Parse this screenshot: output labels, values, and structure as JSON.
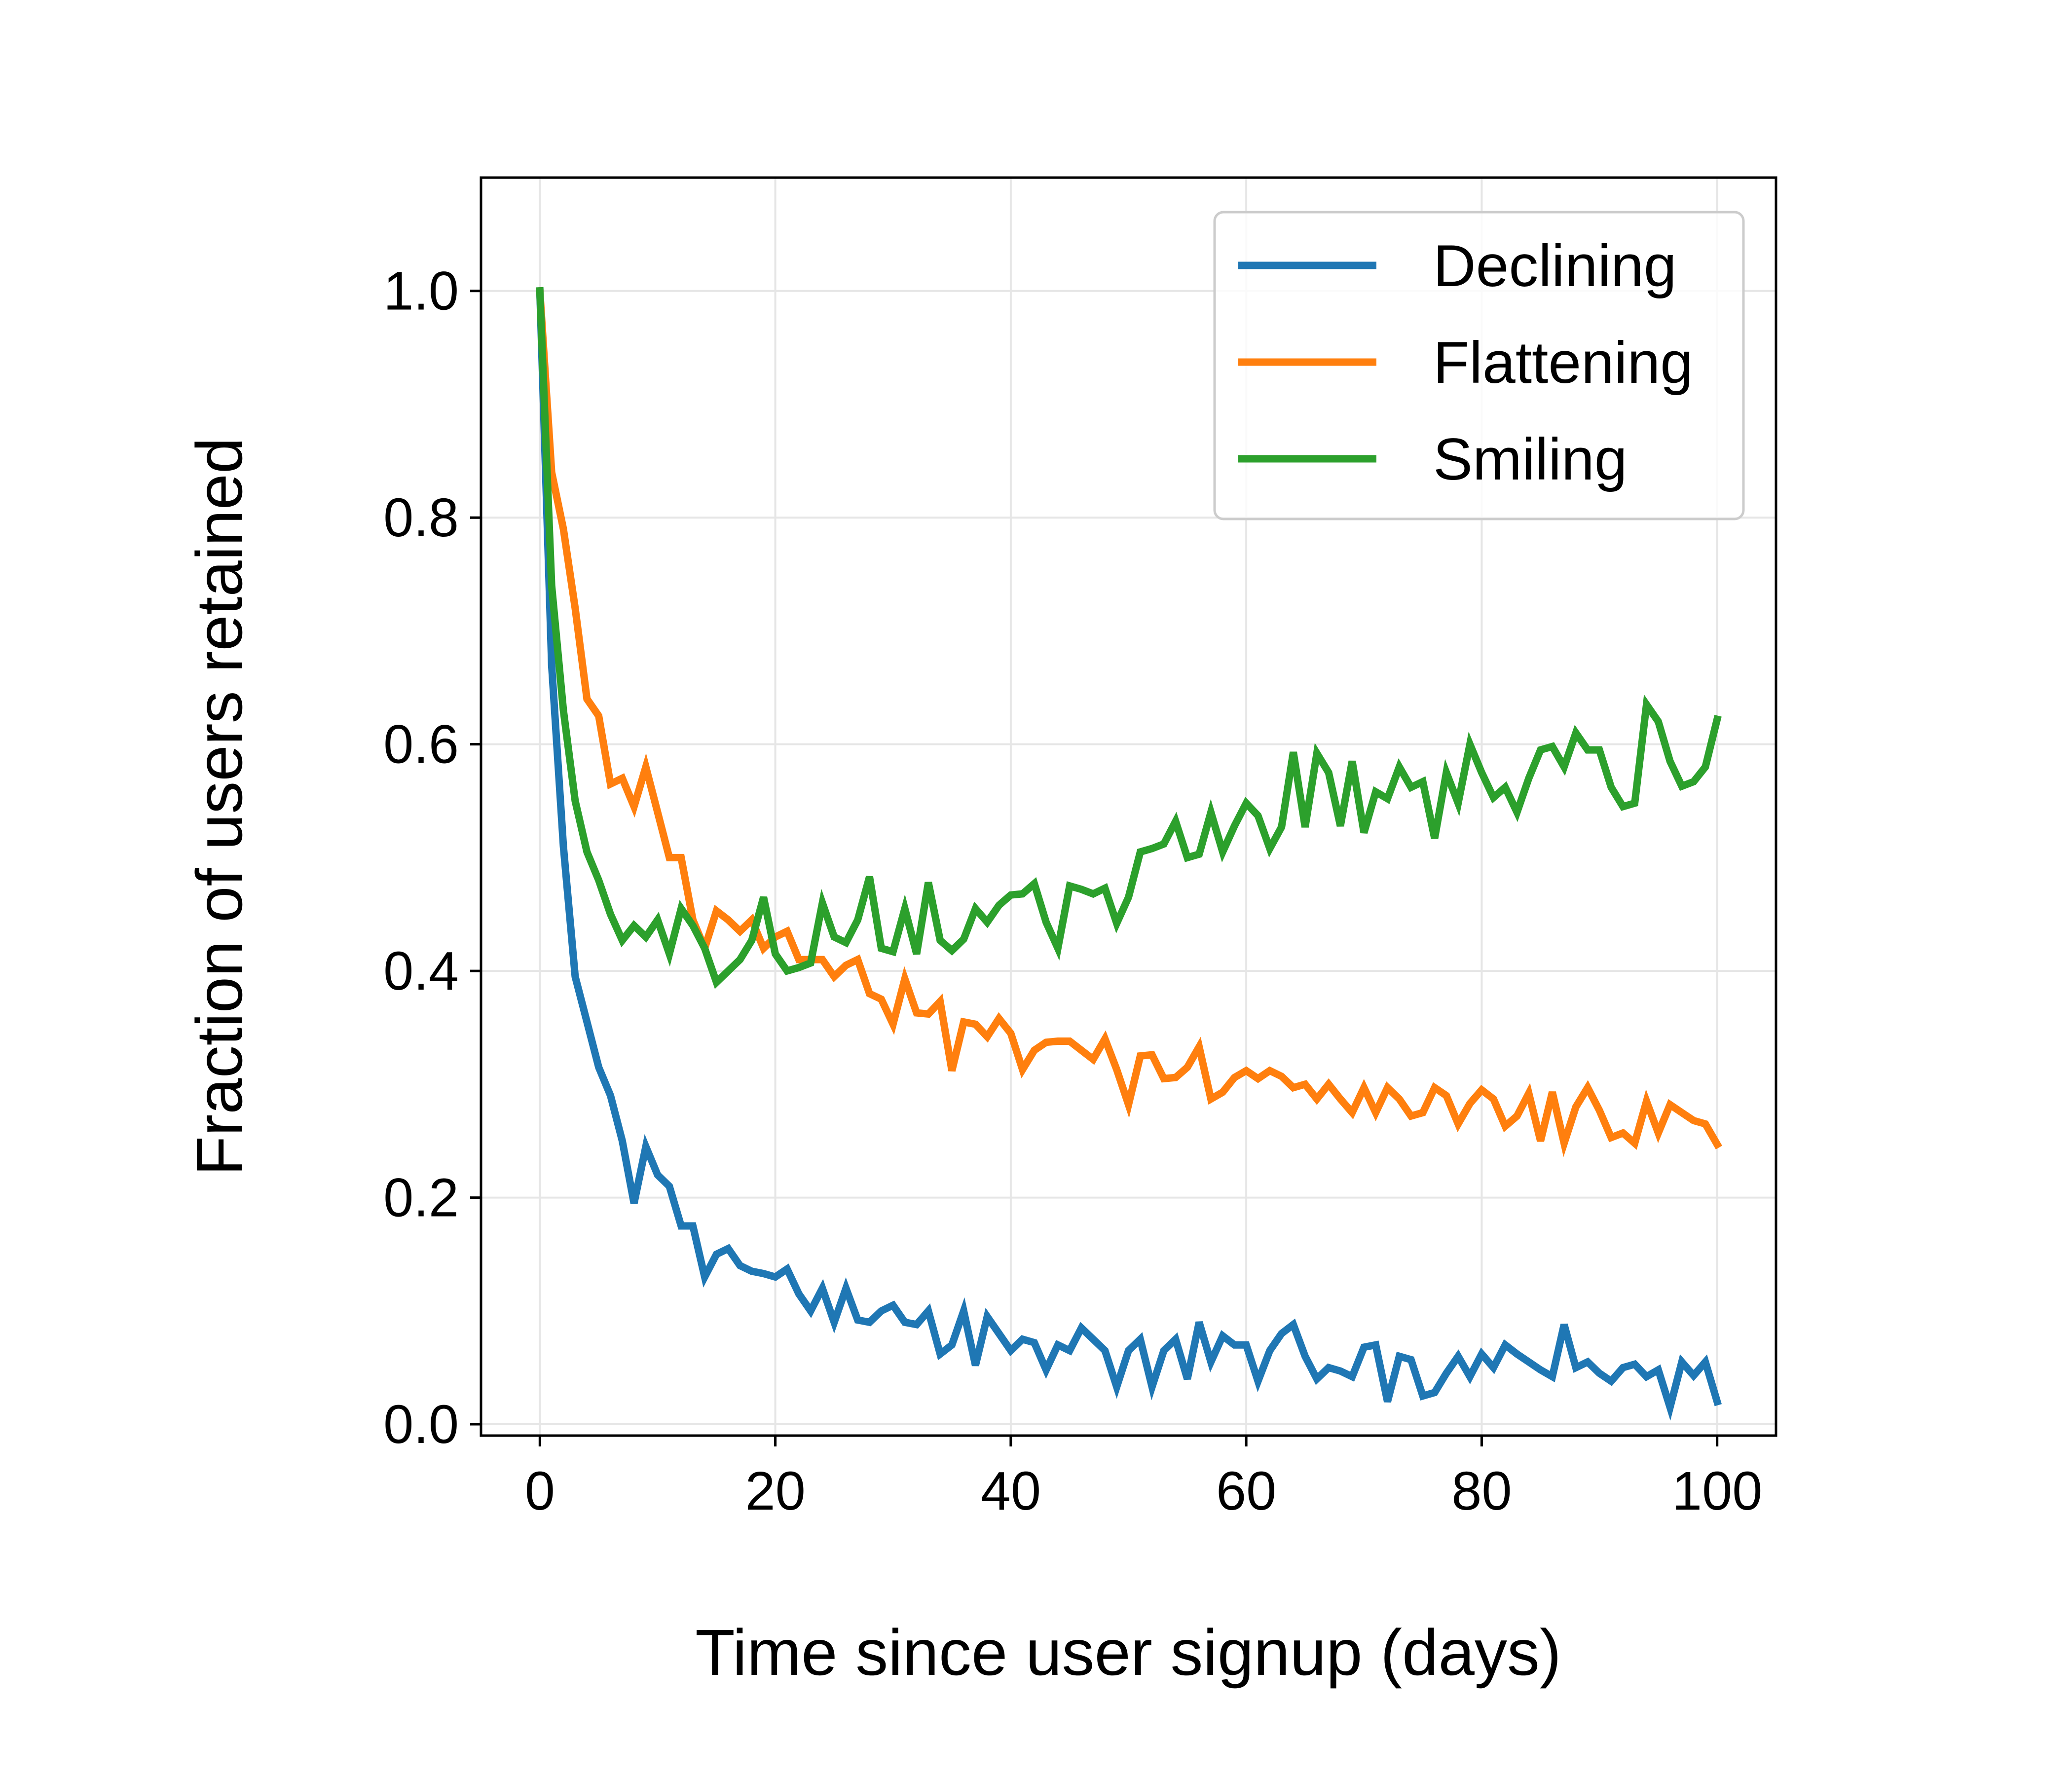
{
  "chart_data": {
    "type": "line",
    "xlabel": "Time since user signup (days)",
    "ylabel": "Fraction of users retained",
    "xlim": [
      -5,
      105
    ],
    "ylim": [
      -0.01,
      1.1
    ],
    "x_ticks": [
      0,
      20,
      40,
      60,
      80,
      100
    ],
    "x_tick_labels": [
      "0",
      "20",
      "40",
      "60",
      "80",
      "100"
    ],
    "y_ticks": [
      0.0,
      0.2,
      0.4,
      0.6,
      0.8,
      1.0
    ],
    "y_tick_labels": [
      "0.0",
      "0.2",
      "0.4",
      "0.6",
      "0.8",
      "1.0"
    ],
    "grid": true,
    "legend_position": "top-right",
    "x": [
      0,
      1,
      2,
      3,
      4,
      5,
      6,
      7,
      8,
      9,
      10,
      11,
      12,
      13,
      14,
      15,
      16,
      17,
      18,
      19,
      20,
      21,
      22,
      23,
      24,
      25,
      26,
      27,
      28,
      29,
      30,
      31,
      32,
      33,
      34,
      35,
      36,
      37,
      38,
      39,
      40,
      41,
      42,
      43,
      44,
      45,
      46,
      47,
      48,
      49,
      50,
      51,
      52,
      53,
      54,
      55,
      56,
      57,
      58,
      59,
      60,
      61,
      62,
      63,
      64,
      65,
      66,
      67,
      68,
      69,
      70,
      71,
      72,
      73,
      74,
      75,
      76,
      77,
      78,
      79,
      80,
      81,
      82,
      83,
      84,
      85,
      86,
      87,
      88,
      89,
      90,
      91,
      92,
      93,
      94,
      95,
      96,
      97,
      98,
      99,
      100
    ],
    "series": [
      {
        "name": "Declining",
        "color": "#1f77b4",
        "values": [
          1.0,
          0.67,
          0.51,
          0.395,
          0.355,
          0.315,
          0.29,
          0.25,
          0.195,
          0.245,
          0.22,
          0.21,
          0.175,
          0.175,
          0.13,
          0.15,
          0.155,
          0.14,
          0.135,
          0.133,
          0.13,
          0.137,
          0.115,
          0.1,
          0.12,
          0.09,
          0.12,
          0.092,
          0.09,
          0.1,
          0.105,
          0.09,
          0.088,
          0.1,
          0.062,
          0.07,
          0.1,
          0.052,
          0.095,
          0.08,
          0.065,
          0.075,
          0.072,
          0.048,
          0.07,
          0.065,
          0.085,
          0.075,
          0.065,
          0.033,
          0.065,
          0.075,
          0.033,
          0.065,
          0.075,
          0.04,
          0.09,
          0.055,
          0.078,
          0.07,
          0.07,
          0.038,
          0.065,
          0.08,
          0.088,
          0.06,
          0.04,
          0.05,
          0.047,
          0.042,
          0.068,
          0.07,
          0.02,
          0.06,
          0.057,
          0.025,
          0.028,
          0.045,
          0.06,
          0.042,
          0.062,
          0.05,
          0.07,
          0.062,
          0.055,
          0.048,
          0.042,
          0.088,
          0.05,
          0.055,
          0.045,
          0.038,
          0.05,
          0.053,
          0.042,
          0.048,
          0.015,
          0.055,
          0.043,
          0.055,
          0.02
        ]
      },
      {
        "name": "Flattening",
        "color": "#ff7f0e",
        "values": [
          1.0,
          0.84,
          0.79,
          0.72,
          0.64,
          0.625,
          0.565,
          0.57,
          0.545,
          0.58,
          0.54,
          0.5,
          0.5,
          0.445,
          0.42,
          0.453,
          0.445,
          0.435,
          0.445,
          0.42,
          0.43,
          0.435,
          0.41,
          0.41,
          0.41,
          0.395,
          0.405,
          0.41,
          0.38,
          0.375,
          0.353,
          0.393,
          0.363,
          0.362,
          0.373,
          0.312,
          0.355,
          0.353,
          0.342,
          0.358,
          0.345,
          0.313,
          0.33,
          0.337,
          0.338,
          0.338,
          0.33,
          0.322,
          0.34,
          0.313,
          0.282,
          0.325,
          0.326,
          0.305,
          0.306,
          0.315,
          0.333,
          0.287,
          0.293,
          0.306,
          0.312,
          0.305,
          0.312,
          0.307,
          0.297,
          0.3,
          0.287,
          0.3,
          0.287,
          0.275,
          0.297,
          0.275,
          0.297,
          0.287,
          0.272,
          0.275,
          0.297,
          0.29,
          0.265,
          0.283,
          0.295,
          0.287,
          0.263,
          0.272,
          0.292,
          0.25,
          0.293,
          0.248,
          0.28,
          0.297,
          0.277,
          0.253,
          0.257,
          0.248,
          0.285,
          0.257,
          0.282,
          0.275,
          0.268,
          0.265,
          0.247
        ]
      },
      {
        "name": "Smiling",
        "color": "#2ca02c",
        "values": [
          1.0,
          0.74,
          0.63,
          0.55,
          0.505,
          0.48,
          0.45,
          0.427,
          0.44,
          0.43,
          0.445,
          0.415,
          0.455,
          0.44,
          0.42,
          0.39,
          0.4,
          0.41,
          0.427,
          0.465,
          0.415,
          0.4,
          0.403,
          0.407,
          0.46,
          0.43,
          0.425,
          0.445,
          0.483,
          0.42,
          0.417,
          0.455,
          0.415,
          0.478,
          0.427,
          0.418,
          0.428,
          0.455,
          0.443,
          0.458,
          0.467,
          0.468,
          0.477,
          0.443,
          0.42,
          0.475,
          0.472,
          0.468,
          0.473,
          0.442,
          0.465,
          0.505,
          0.508,
          0.512,
          0.532,
          0.5,
          0.503,
          0.54,
          0.505,
          0.528,
          0.548,
          0.537,
          0.508,
          0.527,
          0.593,
          0.527,
          0.592,
          0.575,
          0.528,
          0.585,
          0.522,
          0.558,
          0.552,
          0.58,
          0.562,
          0.567,
          0.517,
          0.575,
          0.548,
          0.6,
          0.575,
          0.553,
          0.562,
          0.54,
          0.57,
          0.595,
          0.598,
          0.58,
          0.61,
          0.595,
          0.595,
          0.562,
          0.545,
          0.548,
          0.635,
          0.62,
          0.585,
          0.563,
          0.567,
          0.58,
          0.622
        ]
      }
    ]
  }
}
